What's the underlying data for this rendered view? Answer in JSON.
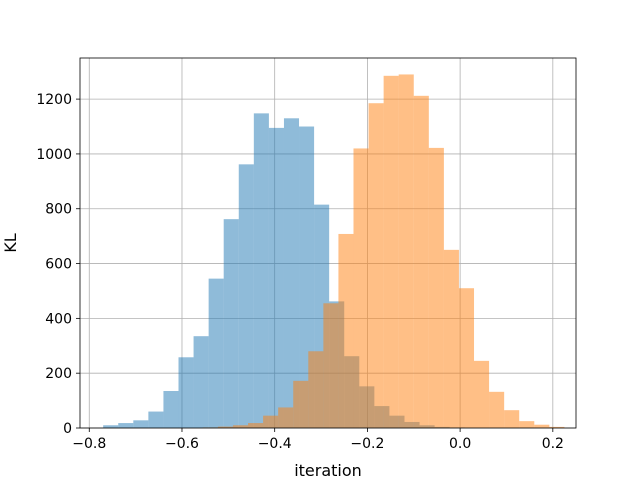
{
  "chart_data": {
    "type": "bar",
    "title": "",
    "xlabel": "iteration",
    "ylabel": "KL",
    "xlim": [
      -0.82,
      0.25
    ],
    "ylim": [
      0,
      1350
    ],
    "grid": true,
    "legend": "none",
    "x_ticks": [
      -0.8,
      -0.6,
      -0.4,
      -0.2,
      0.0,
      0.2
    ],
    "x_tick_labels": [
      "−0.8",
      "−0.6",
      "−0.4",
      "−0.2",
      "0.0",
      "0.2"
    ],
    "y_ticks": [
      0,
      200,
      400,
      600,
      800,
      1000,
      1200
    ],
    "y_tick_labels": [
      "0",
      "200",
      "400",
      "600",
      "800",
      "1000",
      "1200"
    ],
    "series": [
      {
        "color": "#1f77b4",
        "opacity": 0.5,
        "bin_start": -0.77,
        "bin_width": 0.0325,
        "counts": [
          10,
          18,
          28,
          60,
          135,
          258,
          335,
          545,
          762,
          962,
          1148,
          1095,
          1130,
          1100,
          815,
          462,
          262,
          152,
          80,
          45,
          22,
          10,
          4,
          2
        ]
      },
      {
        "color": "#ff7f0e",
        "opacity": 0.5,
        "bin_start": -0.555,
        "bin_width": 0.0325,
        "counts": [
          2,
          5,
          10,
          18,
          45,
          75,
          172,
          280,
          455,
          708,
          1020,
          1185,
          1285,
          1290,
          1212,
          1022,
          650,
          510,
          245,
          132,
          65,
          25,
          12,
          4
        ]
      }
    ]
  }
}
